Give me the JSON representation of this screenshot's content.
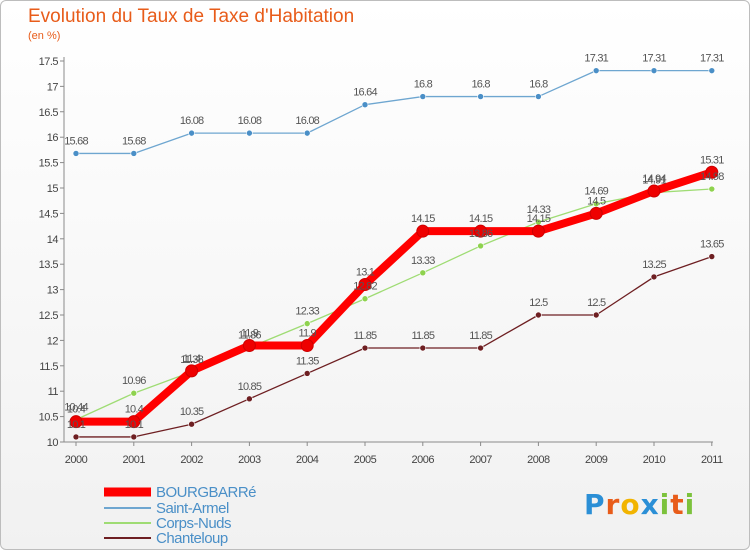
{
  "chart_data": {
    "type": "line",
    "title": "Evolution du Taux de Taxe d'Habitation",
    "subtitle": "(en %)",
    "x": [
      "2000",
      "2001",
      "2002",
      "2003",
      "2004",
      "2005",
      "2006",
      "2007",
      "2008",
      "2009",
      "2010",
      "2011"
    ],
    "ylim": [
      10,
      17.5
    ],
    "yticks": [
      "10",
      "10.5",
      "11",
      "11.5",
      "12",
      "12.5",
      "13",
      "13.5",
      "14",
      "14.5",
      "15",
      "15.5",
      "16",
      "16.5",
      "17",
      "17.5"
    ],
    "grid": false,
    "legend_position": "bottom-left",
    "series": [
      {
        "name": "BOURGBARRé",
        "color": "#ff0000",
        "marker": "#ee0000",
        "width": 8,
        "values": [
          10.4,
          10.4,
          11.4,
          11.9,
          11.9,
          13.1,
          14.15,
          14.15,
          14.15,
          14.5,
          14.94,
          15.31
        ],
        "labels": [
          "10.4",
          "10.4",
          "11.4",
          "11.9",
          "11.9",
          "13.1",
          "14.15",
          "14.15",
          "14.15",
          "14.5",
          "14.94",
          "15.31"
        ]
      },
      {
        "name": "Saint-Armel",
        "color": "#6ea6d0",
        "marker": "#4a8fc7",
        "width": 1.3,
        "values": [
          15.68,
          15.68,
          16.08,
          16.08,
          16.08,
          16.64,
          16.8,
          16.8,
          16.8,
          17.31,
          17.31,
          17.31
        ],
        "labels": [
          "15.68",
          "15.68",
          "16.08",
          "16.08",
          "16.08",
          "16.64",
          "16.8",
          "16.8",
          "16.8",
          "17.31",
          "17.31",
          "17.31"
        ]
      },
      {
        "name": "Corps-Nuds",
        "color": "#9fdc74",
        "marker": "#8ed24e",
        "width": 1.3,
        "values": [
          10.44,
          10.96,
          11.38,
          11.86,
          12.33,
          12.82,
          13.33,
          13.86,
          14.33,
          14.69,
          14.91,
          14.98
        ],
        "labels": [
          "10.44",
          "10.96",
          "11.38",
          "11.86",
          "12.33",
          "12.82",
          "13.33",
          "13.86",
          "14.33",
          "14.69",
          "14.91",
          "14.98"
        ]
      },
      {
        "name": "Chanteloup",
        "color": "#6e1f22",
        "marker": "#6e1f22",
        "width": 1.3,
        "values": [
          10.1,
          10.1,
          10.35,
          10.85,
          11.35,
          11.85,
          11.85,
          11.85,
          12.5,
          12.5,
          13.25,
          13.65
        ],
        "labels": [
          "10.1",
          "10.1",
          "10.35",
          "10.85",
          "11.35",
          "11.85",
          "11.85",
          "11.85",
          "12.5",
          "12.5",
          "13.25",
          "13.65"
        ]
      }
    ]
  },
  "legend": {
    "text_color": "#4a8fc7"
  },
  "logo": {
    "letters": [
      "P",
      "r",
      "o",
      "x",
      "i",
      "t",
      "i"
    ],
    "colors": [
      "#2b8fd6",
      "#e85c1a",
      "#f2b400",
      "#2b8fd6",
      "#7cc23c",
      "#e85c1a",
      "#7cc23c"
    ]
  }
}
